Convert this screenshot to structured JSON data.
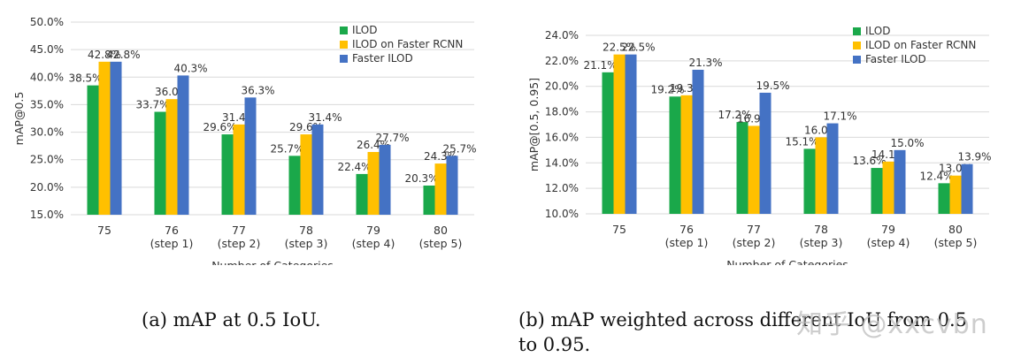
{
  "colors": {
    "ILOD": "#1aa84a",
    "ILOD on Faster RCNN": "#ffc000",
    "Faster ILOD": "#4472c4",
    "grid": "#d9d9d9",
    "text": "#333333"
  },
  "legend": [
    "ILOD",
    "ILOD on Faster RCNN",
    "Faster ILOD"
  ],
  "chart_data": [
    {
      "type": "bar",
      "categories": [
        [
          "75"
        ],
        [
          "76",
          "(step 1)"
        ],
        [
          "77",
          "(step 2)"
        ],
        [
          "78",
          "(step 3)"
        ],
        [
          "79",
          "(step 4)"
        ],
        [
          "80",
          "(step 5)"
        ]
      ],
      "series": [
        {
          "name": "ILOD",
          "values": [
            38.5,
            33.7,
            29.6,
            25.7,
            22.4,
            20.3
          ]
        },
        {
          "name": "ILOD on Faster RCNN",
          "values": [
            42.8,
            36.0,
            31.4,
            29.6,
            26.4,
            24.3
          ]
        },
        {
          "name": "Faster ILOD",
          "values": [
            42.8,
            40.3,
            36.3,
            31.4,
            27.7,
            25.7
          ]
        }
      ],
      "ylabel": "mAP@0.5",
      "xlabel": "Number of Categories",
      "ylim": [
        15,
        50
      ],
      "yticks": [
        15,
        20,
        25,
        30,
        35,
        40,
        45,
        50
      ],
      "yticks_labels": [
        "15.0%",
        "20.0%",
        "25.0%",
        "30.0%",
        "35.0%",
        "40.0%",
        "45.0%",
        "50.0%"
      ],
      "data_labels": [
        [
          "38.5%",
          "33.7%",
          "29.6%",
          "25.7%",
          "22.4%",
          "20.3%"
        ],
        [
          "42.8%",
          "36.0%",
          "31.4%",
          "29.6%",
          "26.4%",
          "24.3%"
        ],
        [
          "42.8%",
          "40.3%",
          "36.3%",
          "31.4%",
          "27.7%",
          "25.7%"
        ]
      ],
      "grid": true,
      "legend_position": "top-right"
    },
    {
      "type": "bar",
      "categories": [
        [
          "75"
        ],
        [
          "76",
          "(step 1)"
        ],
        [
          "77",
          "(step 2)"
        ],
        [
          "78",
          "(step 3)"
        ],
        [
          "79",
          "(step 4)"
        ],
        [
          "80",
          "(step 5)"
        ]
      ],
      "series": [
        {
          "name": "ILOD",
          "values": [
            21.1,
            19.2,
            17.2,
            15.1,
            13.6,
            12.4
          ]
        },
        {
          "name": "ILOD on Faster RCNN",
          "values": [
            22.5,
            19.3,
            16.9,
            16.0,
            14.1,
            13.0
          ]
        },
        {
          "name": "Faster ILOD",
          "values": [
            22.5,
            21.3,
            19.5,
            17.1,
            15.0,
            13.9
          ]
        }
      ],
      "ylabel": "mAP@[0.5, 0.95]",
      "xlabel": "Number of Categories",
      "ylim": [
        10,
        24
      ],
      "yticks": [
        10,
        12,
        14,
        16,
        18,
        20,
        22,
        24
      ],
      "yticks_labels": [
        "10.0%",
        "12.0%",
        "14.0%",
        "16.0%",
        "18.0%",
        "20.0%",
        "22.0%",
        "24.0%"
      ],
      "data_labels": [
        [
          "21.1%",
          "19.2%",
          "17.2%",
          "15.1%",
          "13.6%",
          "12.4%"
        ],
        [
          "22.5%",
          "19.3%",
          "16.9%",
          "16.0%",
          "14.1%",
          "13.0%"
        ],
        [
          "22.5%",
          "21.3%",
          "19.5%",
          "17.1%",
          "15.0%",
          "13.9%"
        ]
      ],
      "grid": true,
      "legend_position": "top-right"
    }
  ],
  "captions": {
    "a": "(a) mAP at 0.5 IoU.",
    "b": "(b) mAP weighted across different IoU from 0.5\nto 0.95."
  },
  "watermark": "知乎 @xxcvbn"
}
